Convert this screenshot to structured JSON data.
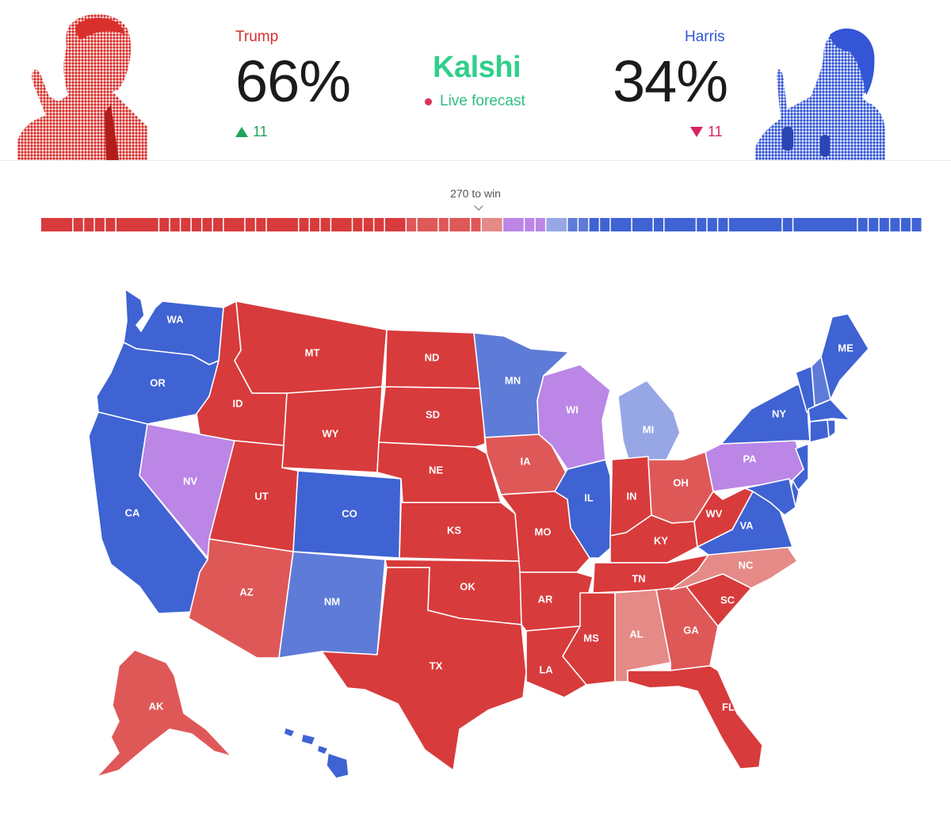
{
  "brand": {
    "name": "Kalshi",
    "subtitle": "Live forecast"
  },
  "candidates": {
    "left": {
      "name": "Trump",
      "pct": "66%",
      "change": "11",
      "direction": "up",
      "color": "#d9302c"
    },
    "right": {
      "name": "Harris",
      "pct": "34%",
      "change": "11",
      "direction": "down",
      "color": "#3355d6"
    }
  },
  "colors": {
    "safe_r": "#d83b3c",
    "likely_r": "#df5858",
    "lean_r": "#e58a87",
    "tossup": "#bb86e6",
    "lean_d": "#97a7e6",
    "likely_d": "#5e7bd8",
    "safe_d": "#3f63d3",
    "change_up": "#1fa35b",
    "change_down": "#d6245f",
    "brand": "#2fcf8a"
  },
  "win_threshold": {
    "label": "270 to win"
  },
  "electoral_bar": {
    "segments": [
      {
        "c": "safe_r",
        "w": 3
      },
      {
        "c": "safe_r",
        "w": 1
      },
      {
        "c": "safe_r",
        "w": 1
      },
      {
        "c": "safe_r",
        "w": 1
      },
      {
        "c": "safe_r",
        "w": 1
      },
      {
        "c": "safe_r",
        "w": 4
      },
      {
        "c": "safe_r",
        "w": 1
      },
      {
        "c": "safe_r",
        "w": 1
      },
      {
        "c": "safe_r",
        "w": 1
      },
      {
        "c": "safe_r",
        "w": 1
      },
      {
        "c": "safe_r",
        "w": 1
      },
      {
        "c": "safe_r",
        "w": 1
      },
      {
        "c": "safe_r",
        "w": 2
      },
      {
        "c": "safe_r",
        "w": 1
      },
      {
        "c": "safe_r",
        "w": 1
      },
      {
        "c": "safe_r",
        "w": 3
      },
      {
        "c": "safe_r",
        "w": 1
      },
      {
        "c": "safe_r",
        "w": 1
      },
      {
        "c": "safe_r",
        "w": 1
      },
      {
        "c": "safe_r",
        "w": 2
      },
      {
        "c": "safe_r",
        "w": 1
      },
      {
        "c": "safe_r",
        "w": 1
      },
      {
        "c": "safe_r",
        "w": 1
      },
      {
        "c": "safe_r",
        "w": 2
      },
      {
        "c": "likely_r",
        "w": 1
      },
      {
        "c": "likely_r",
        "w": 2
      },
      {
        "c": "likely_r",
        "w": 1
      },
      {
        "c": "likely_r",
        "w": 2
      },
      {
        "c": "likely_r",
        "w": 1
      },
      {
        "c": "lean_r",
        "w": 2
      },
      {
        "c": "tossup",
        "w": 2
      },
      {
        "c": "tossup",
        "w": 1
      },
      {
        "c": "tossup",
        "w": 1
      },
      {
        "c": "lean_d",
        "w": 2
      },
      {
        "c": "likely_d",
        "w": 1
      },
      {
        "c": "likely_d",
        "w": 1
      },
      {
        "c": "safe_d",
        "w": 1
      },
      {
        "c": "safe_d",
        "w": 1
      },
      {
        "c": "safe_d",
        "w": 2
      },
      {
        "c": "safe_d",
        "w": 2
      },
      {
        "c": "safe_d",
        "w": 1
      },
      {
        "c": "safe_d",
        "w": 3
      },
      {
        "c": "safe_d",
        "w": 1
      },
      {
        "c": "safe_d",
        "w": 1
      },
      {
        "c": "safe_d",
        "w": 1
      },
      {
        "c": "safe_d",
        "w": 5
      },
      {
        "c": "safe_d",
        "w": 1
      },
      {
        "c": "safe_d",
        "w": 6
      },
      {
        "c": "safe_d",
        "w": 1
      },
      {
        "c": "safe_d",
        "w": 1
      },
      {
        "c": "safe_d",
        "w": 1
      },
      {
        "c": "safe_d",
        "w": 1
      },
      {
        "c": "safe_d",
        "w": 1
      },
      {
        "c": "safe_d",
        "w": 1
      }
    ]
  },
  "map": {
    "states": [
      {
        "id": "WA",
        "label": "WA",
        "rating": "safe_d"
      },
      {
        "id": "OR",
        "label": "OR",
        "rating": "safe_d"
      },
      {
        "id": "CA",
        "label": "CA",
        "rating": "safe_d"
      },
      {
        "id": "NV",
        "label": "NV",
        "rating": "tossup"
      },
      {
        "id": "ID",
        "label": "ID",
        "rating": "safe_r"
      },
      {
        "id": "MT",
        "label": "MT",
        "rating": "safe_r"
      },
      {
        "id": "WY",
        "label": "WY",
        "rating": "safe_r"
      },
      {
        "id": "UT",
        "label": "UT",
        "rating": "safe_r"
      },
      {
        "id": "AZ",
        "label": "AZ",
        "rating": "likely_r"
      },
      {
        "id": "CO",
        "label": "CO",
        "rating": "safe_d"
      },
      {
        "id": "NM",
        "label": "NM",
        "rating": "likely_d"
      },
      {
        "id": "ND",
        "label": "ND",
        "rating": "safe_r"
      },
      {
        "id": "SD",
        "label": "SD",
        "rating": "safe_r"
      },
      {
        "id": "NE",
        "label": "NE",
        "rating": "safe_r"
      },
      {
        "id": "KS",
        "label": "KS",
        "rating": "safe_r"
      },
      {
        "id": "OK",
        "label": "OK",
        "rating": "safe_r"
      },
      {
        "id": "TX",
        "label": "TX",
        "rating": "safe_r"
      },
      {
        "id": "MN",
        "label": "MN",
        "rating": "likely_d"
      },
      {
        "id": "IA",
        "label": "IA",
        "rating": "likely_r"
      },
      {
        "id": "MO",
        "label": "MO",
        "rating": "safe_r"
      },
      {
        "id": "AR",
        "label": "AR",
        "rating": "safe_r"
      },
      {
        "id": "LA",
        "label": "LA",
        "rating": "safe_r"
      },
      {
        "id": "WI",
        "label": "WI",
        "rating": "tossup"
      },
      {
        "id": "IL",
        "label": "IL",
        "rating": "safe_d"
      },
      {
        "id": "MI",
        "label": "MI",
        "rating": "lean_d"
      },
      {
        "id": "IN",
        "label": "IN",
        "rating": "safe_r"
      },
      {
        "id": "OH",
        "label": "OH",
        "rating": "likely_r"
      },
      {
        "id": "KY",
        "label": "KY",
        "rating": "safe_r"
      },
      {
        "id": "TN",
        "label": "TN",
        "rating": "safe_r"
      },
      {
        "id": "MS",
        "label": "MS",
        "rating": "safe_r"
      },
      {
        "id": "AL",
        "label": "AL",
        "rating": "lean_r"
      },
      {
        "id": "GA",
        "label": "GA",
        "rating": "likely_r"
      },
      {
        "id": "FL",
        "label": "FL",
        "rating": "safe_r"
      },
      {
        "id": "SC",
        "label": "SC",
        "rating": "safe_r"
      },
      {
        "id": "NC",
        "label": "NC",
        "rating": "lean_r"
      },
      {
        "id": "VA",
        "label": "VA",
        "rating": "safe_d"
      },
      {
        "id": "WV",
        "label": "WV",
        "rating": "safe_r"
      },
      {
        "id": "PA",
        "label": "PA",
        "rating": "tossup"
      },
      {
        "id": "NY",
        "label": "NY",
        "rating": "safe_d"
      },
      {
        "id": "ME",
        "label": "ME",
        "rating": "safe_d"
      },
      {
        "id": "VT",
        "label": "",
        "rating": "safe_d"
      },
      {
        "id": "NH",
        "label": "",
        "rating": "likely_d"
      },
      {
        "id": "MA",
        "label": "",
        "rating": "safe_d"
      },
      {
        "id": "CT",
        "label": "",
        "rating": "safe_d"
      },
      {
        "id": "RI",
        "label": "",
        "rating": "safe_d"
      },
      {
        "id": "NJ",
        "label": "",
        "rating": "safe_d"
      },
      {
        "id": "DE",
        "label": "",
        "rating": "safe_d"
      },
      {
        "id": "MD",
        "label": "",
        "rating": "safe_d"
      },
      {
        "id": "AK",
        "label": "AK",
        "rating": "likely_r"
      },
      {
        "id": "HI",
        "label": "",
        "rating": "safe_d"
      }
    ]
  }
}
